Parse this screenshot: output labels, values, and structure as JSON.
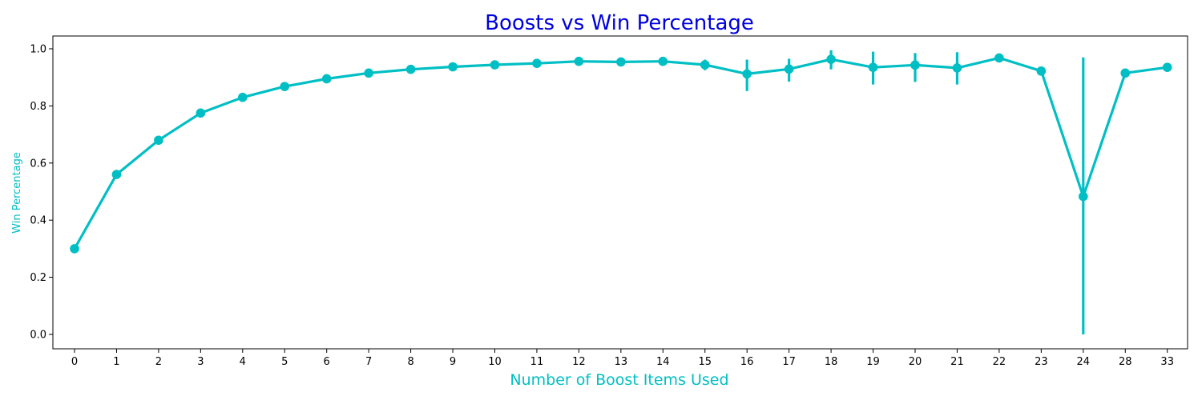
{
  "chart_data": {
    "type": "line",
    "title": "Boosts vs Win Percentage",
    "xlabel": "Number of Boost Items Used",
    "ylabel": "Win Percentage",
    "categories": [
      "0",
      "1",
      "2",
      "3",
      "4",
      "5",
      "6",
      "7",
      "8",
      "9",
      "10",
      "11",
      "12",
      "13",
      "14",
      "15",
      "16",
      "17",
      "18",
      "19",
      "20",
      "21",
      "22",
      "23",
      "24",
      "28",
      "33"
    ],
    "values": [
      0.3,
      0.56,
      0.68,
      0.775,
      0.83,
      0.868,
      0.895,
      0.915,
      0.928,
      0.937,
      0.944,
      0.949,
      0.956,
      0.954,
      0.956,
      0.944,
      0.912,
      0.929,
      0.963,
      0.935,
      0.943,
      0.933,
      0.968,
      0.922,
      0.483,
      0.915,
      0.935
    ],
    "error_low": [
      0.3,
      0.56,
      0.68,
      0.775,
      0.83,
      0.868,
      0.895,
      0.915,
      0.928,
      0.937,
      0.944,
      0.949,
      0.956,
      0.954,
      0.956,
      0.925,
      0.852,
      0.885,
      0.928,
      0.875,
      0.884,
      0.875,
      0.968,
      0.922,
      0.0,
      0.915,
      0.935
    ],
    "error_high": [
      0.3,
      0.56,
      0.68,
      0.775,
      0.83,
      0.868,
      0.895,
      0.915,
      0.928,
      0.937,
      0.944,
      0.949,
      0.956,
      0.954,
      0.956,
      0.962,
      0.962,
      0.965,
      0.995,
      0.99,
      0.985,
      0.988,
      0.968,
      0.922,
      0.97,
      0.915,
      0.935
    ],
    "yticks": [
      "0.0",
      "0.2",
      "0.4",
      "0.6",
      "0.8",
      "1.0"
    ],
    "ylim": [
      -0.05,
      1.04
    ],
    "grid": false,
    "colors": {
      "series": "#00BFC4",
      "title": "#0000DD",
      "axis_label": "#00BFC4",
      "axis": "#000000"
    }
  }
}
